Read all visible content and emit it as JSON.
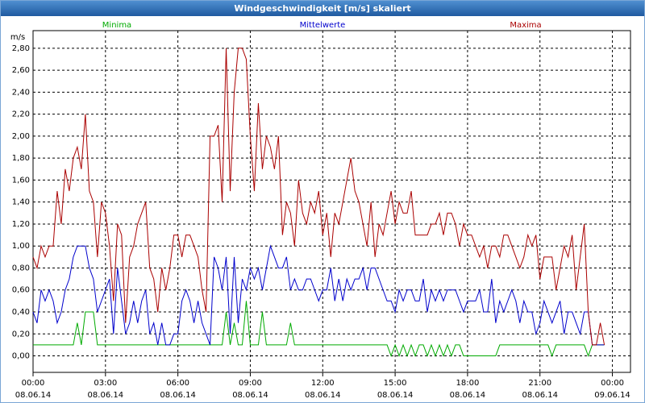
{
  "chart_data": {
    "type": "line",
    "title": "Windgeschwindigkeit [m/s] skaliert",
    "y_label": "m/s",
    "grid": true,
    "xlim": [
      0,
      1485
    ],
    "ylim": [
      -0.15,
      2.96
    ],
    "xticks": [
      {
        "value": 0,
        "label": "00:00",
        "date": "08.06.14"
      },
      {
        "value": 180,
        "label": "03:00",
        "date": "08.06.14"
      },
      {
        "value": 360,
        "label": "06:00",
        "date": "08.06.14"
      },
      {
        "value": 540,
        "label": "09:00",
        "date": "08.06.14"
      },
      {
        "value": 720,
        "label": "12:00",
        "date": "08.06.14"
      },
      {
        "value": 900,
        "label": "15:00",
        "date": "08.06.14"
      },
      {
        "value": 1080,
        "label": "18:00",
        "date": "08.06.14"
      },
      {
        "value": 1260,
        "label": "21:00",
        "date": "08.06.14"
      },
      {
        "value": 1440,
        "label": "00:00",
        "date": "09.06.14"
      }
    ],
    "yticks": [
      {
        "value": 0,
        "label": "0,00"
      },
      {
        "value": 0.2,
        "label": "0,20"
      },
      {
        "value": 0.4,
        "label": "0,40"
      },
      {
        "value": 0.6,
        "label": "0,60"
      },
      {
        "value": 0.8,
        "label": "0,80"
      },
      {
        "value": 1.0,
        "label": "1,00"
      },
      {
        "value": 1.2,
        "label": "1,20"
      },
      {
        "value": 1.4,
        "label": "1,40"
      },
      {
        "value": 1.6,
        "label": "1,60"
      },
      {
        "value": 1.8,
        "label": "1,80"
      },
      {
        "value": 2.0,
        "label": "2,00"
      },
      {
        "value": 2.2,
        "label": "2,20"
      },
      {
        "value": 2.4,
        "label": "2,40"
      },
      {
        "value": 2.6,
        "label": "2,60"
      },
      {
        "value": 2.8,
        "label": "2,80"
      }
    ],
    "x": [
      0,
      10,
      20,
      30,
      40,
      50,
      60,
      70,
      80,
      90,
      100,
      110,
      120,
      130,
      140,
      150,
      160,
      170,
      180,
      190,
      200,
      210,
      220,
      230,
      240,
      250,
      260,
      270,
      280,
      290,
      300,
      310,
      320,
      330,
      340,
      350,
      360,
      370,
      380,
      390,
      400,
      410,
      420,
      430,
      440,
      450,
      460,
      470,
      480,
      490,
      500,
      510,
      520,
      530,
      540,
      550,
      560,
      570,
      580,
      590,
      600,
      610,
      620,
      630,
      640,
      650,
      660,
      670,
      680,
      690,
      700,
      710,
      720,
      730,
      740,
      750,
      760,
      770,
      780,
      790,
      800,
      810,
      820,
      830,
      840,
      850,
      860,
      870,
      880,
      890,
      900,
      910,
      920,
      930,
      940,
      950,
      960,
      970,
      980,
      990,
      1000,
      1010,
      1020,
      1030,
      1040,
      1050,
      1060,
      1070,
      1080,
      1090,
      1100,
      1110,
      1120,
      1130,
      1140,
      1150,
      1160,
      1170,
      1180,
      1190,
      1200,
      1210,
      1220,
      1230,
      1240,
      1250,
      1260,
      1270,
      1280,
      1290,
      1300,
      1310,
      1320,
      1330,
      1340,
      1350,
      1360,
      1370,
      1380,
      1390,
      1400,
      1410,
      1420
    ],
    "series": [
      {
        "name": "Minima",
        "color": "#00aa00",
        "values": [
          0.1,
          0.1,
          0.1,
          0.1,
          0.1,
          0.1,
          0.1,
          0.1,
          0.1,
          0.1,
          0.1,
          0.3,
          0.1,
          0.4,
          0.4,
          0.4,
          0.1,
          0.1,
          0.1,
          0.1,
          0.1,
          0.1,
          0.1,
          0.1,
          0.1,
          0.1,
          0.1,
          0.1,
          0.1,
          0.1,
          0.1,
          0.1,
          0.1,
          0.1,
          0.1,
          0.1,
          0.1,
          0.1,
          0.1,
          0.1,
          0.1,
          0.1,
          0.1,
          0.1,
          0.1,
          0.1,
          0.1,
          0.1,
          0.4,
          0.1,
          0.3,
          0.1,
          0.1,
          0.5,
          0.1,
          0.1,
          0.1,
          0.4,
          0.1,
          0.1,
          0.1,
          0.1,
          0.1,
          0.1,
          0.3,
          0.1,
          0.1,
          0.1,
          0.1,
          0.1,
          0.1,
          0.1,
          0.1,
          0.1,
          0.1,
          0.1,
          0.1,
          0.1,
          0.1,
          0.1,
          0.1,
          0.1,
          0.1,
          0.1,
          0.1,
          0.1,
          0.1,
          0.1,
          0.1,
          0.0,
          0.1,
          0.0,
          0.1,
          0.0,
          0.1,
          0.0,
          0.1,
          0.1,
          0.0,
          0.1,
          0.0,
          0.1,
          0.0,
          0.1,
          0.0,
          0.1,
          0.1,
          0.0,
          0.0,
          0.0,
          0.0,
          0.0,
          0.0,
          0.0,
          0.0,
          0.0,
          0.1,
          0.1,
          0.1,
          0.1,
          0.1,
          0.1,
          0.1,
          0.1,
          0.1,
          0.1,
          0.1,
          0.1,
          0.1,
          0.0,
          0.1,
          0.1,
          0.1,
          0.1,
          0.1,
          0.1,
          0.1,
          0.1,
          0.0,
          0.1,
          0.1,
          0.1,
          0.1
        ]
      },
      {
        "name": "Mittelwerte",
        "color": "#0000cc",
        "values": [
          0.4,
          0.3,
          0.6,
          0.5,
          0.6,
          0.5,
          0.3,
          0.4,
          0.6,
          0.7,
          0.9,
          1.0,
          1.0,
          1.0,
          0.8,
          0.7,
          0.4,
          0.5,
          0.6,
          0.7,
          0.2,
          0.8,
          0.5,
          0.2,
          0.3,
          0.5,
          0.3,
          0.5,
          0.6,
          0.2,
          0.3,
          0.1,
          0.3,
          0.1,
          0.1,
          0.2,
          0.2,
          0.5,
          0.6,
          0.5,
          0.3,
          0.5,
          0.3,
          0.2,
          0.1,
          0.9,
          0.8,
          0.6,
          0.9,
          0.2,
          0.9,
          0.3,
          0.7,
          0.6,
          0.8,
          0.7,
          0.8,
          0.6,
          0.8,
          1.0,
          0.9,
          0.8,
          0.8,
          0.9,
          0.6,
          0.7,
          0.6,
          0.6,
          0.7,
          0.7,
          0.6,
          0.5,
          0.6,
          0.6,
          0.8,
          0.5,
          0.7,
          0.5,
          0.7,
          0.6,
          0.7,
          0.7,
          0.8,
          0.6,
          0.8,
          0.8,
          0.7,
          0.6,
          0.5,
          0.5,
          0.4,
          0.6,
          0.5,
          0.6,
          0.6,
          0.5,
          0.5,
          0.7,
          0.4,
          0.6,
          0.5,
          0.6,
          0.5,
          0.6,
          0.6,
          0.6,
          0.5,
          0.4,
          0.5,
          0.5,
          0.5,
          0.6,
          0.4,
          0.4,
          0.7,
          0.3,
          0.5,
          0.4,
          0.5,
          0.6,
          0.5,
          0.3,
          0.5,
          0.4,
          0.4,
          0.2,
          0.3,
          0.5,
          0.4,
          0.3,
          0.4,
          0.5,
          0.2,
          0.4,
          0.4,
          0.3,
          0.2,
          0.4,
          0.4,
          0.1,
          0.1,
          0.1,
          0.1
        ]
      },
      {
        "name": "Maxima",
        "color": "#aa0000",
        "values": [
          0.9,
          0.8,
          1.0,
          0.9,
          1.0,
          1.0,
          1.5,
          1.2,
          1.7,
          1.5,
          1.8,
          1.9,
          1.7,
          2.2,
          1.5,
          1.4,
          0.9,
          1.4,
          1.3,
          1.0,
          0.5,
          1.2,
          1.1,
          0.3,
          0.9,
          1.0,
          1.2,
          1.3,
          1.4,
          0.8,
          0.7,
          0.4,
          0.8,
          0.6,
          0.8,
          1.1,
          1.1,
          0.9,
          1.1,
          1.1,
          1.0,
          0.9,
          0.6,
          0.4,
          2.0,
          2.0,
          2.1,
          1.4,
          2.8,
          1.5,
          2.4,
          2.8,
          2.8,
          2.7,
          2.0,
          1.5,
          2.3,
          1.7,
          2.0,
          1.9,
          1.7,
          2.0,
          1.1,
          1.4,
          1.3,
          1.0,
          1.6,
          1.3,
          1.2,
          1.4,
          1.3,
          1.5,
          1.1,
          1.3,
          0.9,
          1.3,
          1.2,
          1.4,
          1.6,
          1.8,
          1.5,
          1.4,
          1.2,
          1.0,
          1.4,
          0.9,
          1.2,
          1.1,
          1.3,
          1.5,
          1.2,
          1.4,
          1.3,
          1.3,
          1.5,
          1.1,
          1.1,
          1.1,
          1.1,
          1.2,
          1.2,
          1.3,
          1.1,
          1.3,
          1.3,
          1.2,
          1.0,
          1.2,
          1.1,
          1.1,
          1.0,
          0.9,
          1.0,
          0.8,
          1.0,
          1.0,
          0.9,
          1.1,
          1.1,
          1.0,
          0.9,
          0.8,
          0.9,
          1.1,
          1.0,
          1.1,
          0.7,
          0.9,
          0.9,
          0.9,
          0.6,
          0.8,
          1.0,
          0.9,
          1.1,
          0.6,
          0.9,
          1.2,
          0.4,
          0.1,
          0.1,
          0.3,
          0.1
        ]
      }
    ]
  }
}
